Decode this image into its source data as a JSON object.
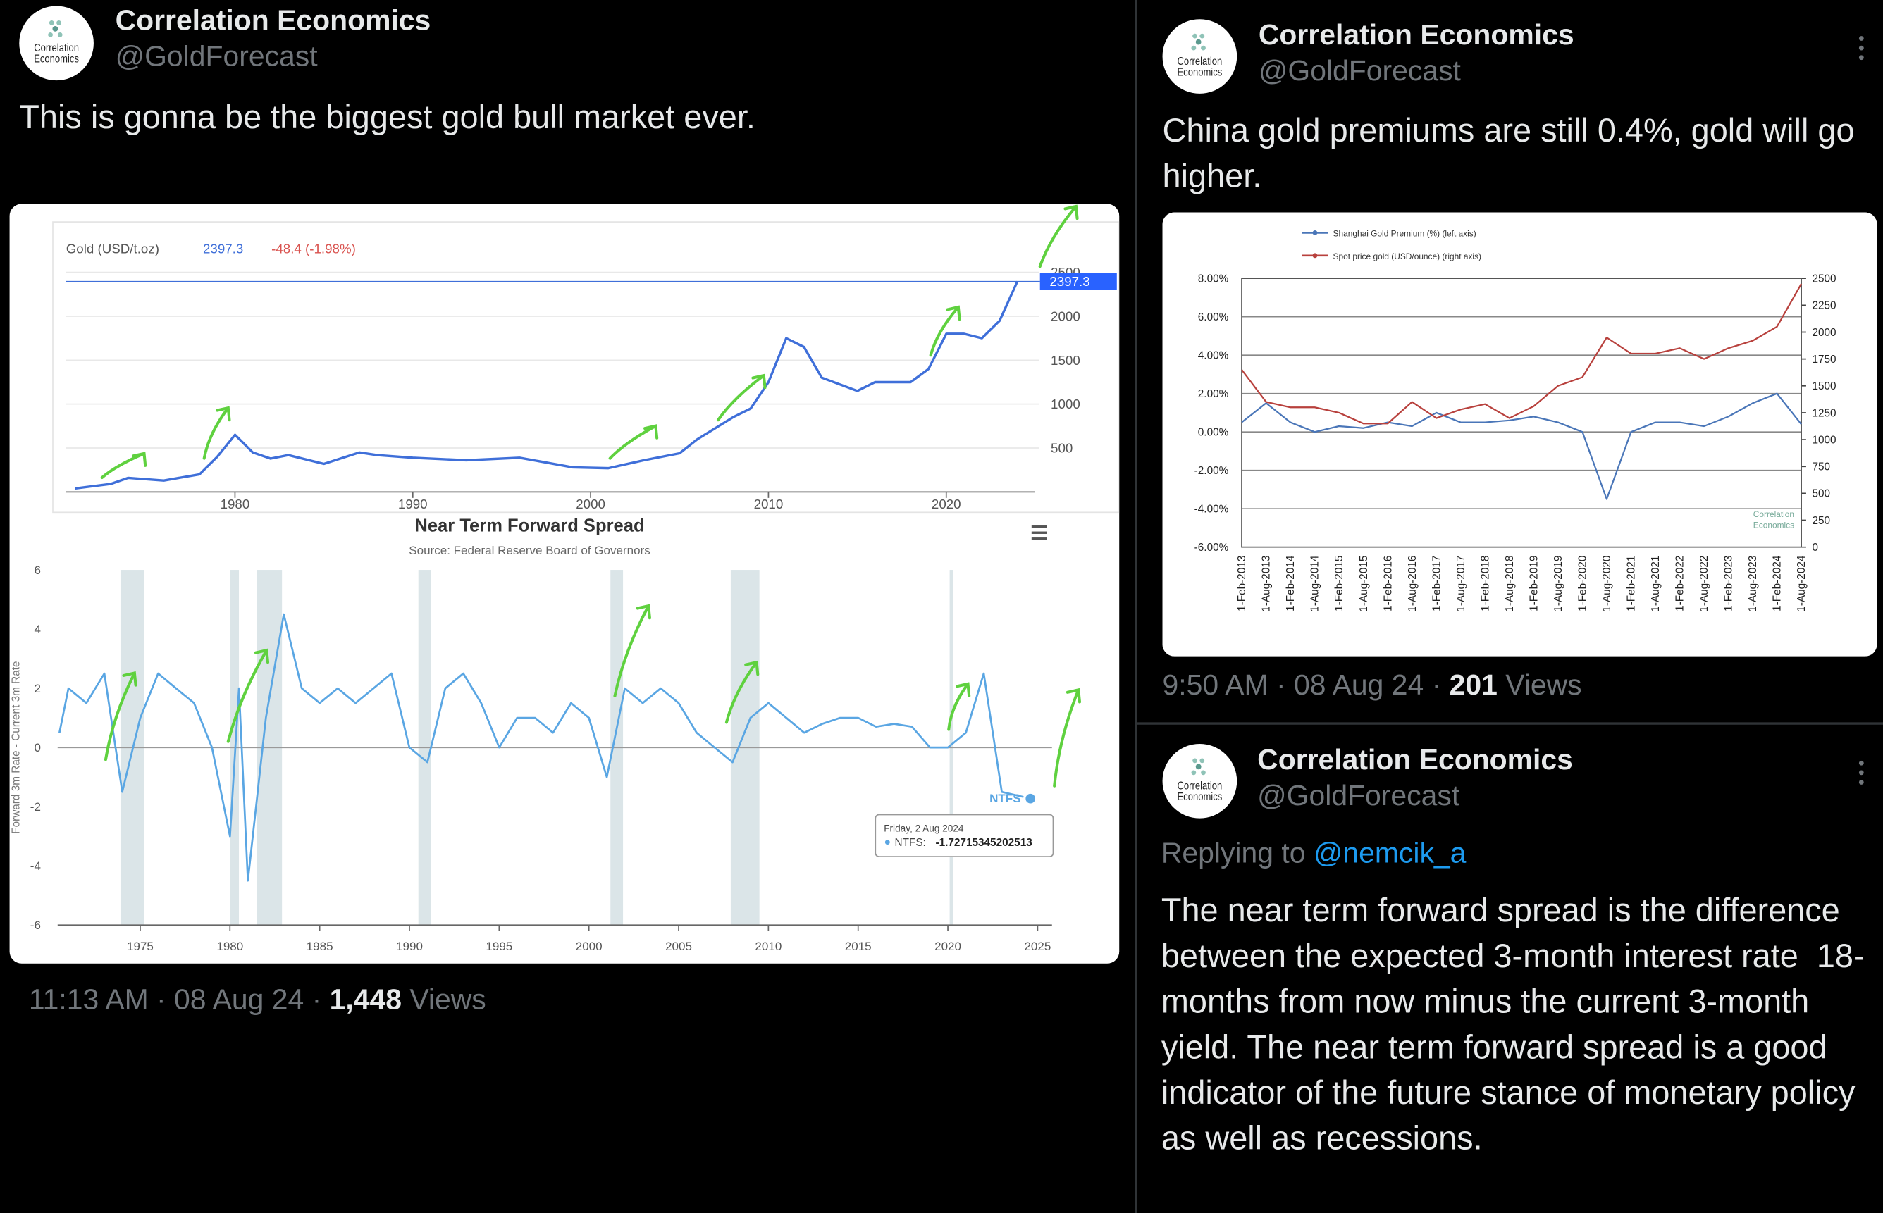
{
  "logo": {
    "lines": [
      "Correlation",
      "Economics"
    ]
  },
  "separator": "·",
  "tweets": [
    {
      "author": "Correlation Economics",
      "handle": "@GoldForecast",
      "text": "This is gonna be the biggest gold bull market ever.",
      "time": "11:13 AM",
      "date": "08 Aug 24",
      "views": "1,448",
      "views_label": "Views",
      "media": [
        {
          "type": "line",
          "title": "Gold (USD/t.oz)",
          "last_price": 2397.3,
          "change": "-48.4 (-1.98%)",
          "series": [
            {
              "name": "Gold",
              "color": "#3f6fd9",
              "x": [
                1971,
                1973,
                1974,
                1976,
                1978,
                1979,
                1980,
                1981,
                1982,
                1983,
                1985,
                1987,
                1988,
                1990,
                1993,
                1996,
                1999,
                2001,
                2003,
                2005,
                2006,
                2008,
                2009,
                2010,
                2011,
                2012,
                2013,
                2015,
                2016,
                2018,
                2019,
                2020,
                2021,
                2022,
                2023,
                2024
              ],
              "values": [
                40,
                90,
                160,
                130,
                200,
                400,
                650,
                450,
                380,
                420,
                320,
                450,
                420,
                390,
                360,
                390,
                280,
                270,
                360,
                440,
                600,
                850,
                950,
                1250,
                1750,
                1650,
                1300,
                1150,
                1250,
                1250,
                1400,
                1800,
                1800,
                1750,
                1950,
                2397.3
              ]
            }
          ],
          "xlim": [
            1970.5,
            2025
          ],
          "ylim": [
            0,
            2500
          ],
          "xticks": [
            1980,
            1990,
            2000,
            2010,
            2020
          ],
          "yticks": [
            500,
            1000,
            1500,
            2000,
            2500
          ],
          "grid": true
        },
        {
          "type": "line",
          "title": "Near Term Forward Spread",
          "subtitle": "Source: Federal Reserve Board of Governors",
          "y_label": "Forward 3m Rate - Current 3m Rate",
          "series": [
            {
              "name": "NTFS",
              "color": "#5aa6e3",
              "x": [
                1970.5,
                1971,
                1972,
                1973,
                1974,
                1975,
                1976,
                1977,
                1978,
                1979,
                1980,
                1980.5,
                1981,
                1982,
                1983,
                1984,
                1985,
                1986,
                1987,
                1988,
                1989,
                1990,
                1991,
                1992,
                1993,
                1994,
                1995,
                1996,
                1997,
                1998,
                1999,
                2000,
                2001,
                2002,
                2003,
                2004,
                2005,
                2006,
                2007,
                2008,
                2009,
                2010,
                2011,
                2012,
                2013,
                2014,
                2015,
                2016,
                2017,
                2018,
                2019,
                2020,
                2021,
                2022,
                2023,
                2024.6
              ],
              "values": [
                0.5,
                2,
                1.5,
                2.5,
                -1.5,
                1,
                2.5,
                2,
                1.5,
                0,
                -3,
                2,
                -4.5,
                1,
                4.5,
                2,
                1.5,
                2,
                1.5,
                2,
                2.5,
                0,
                -0.5,
                2,
                2.5,
                1.5,
                0,
                1,
                1,
                0.5,
                1.5,
                1,
                -1,
                2,
                1.5,
                2,
                1.5,
                0.5,
                0,
                -0.5,
                1,
                1.5,
                1,
                0.5,
                0.8,
                1,
                1,
                0.7,
                0.8,
                0.7,
                0,
                0,
                0.5,
                2.5,
                -1.5,
                -1.72715345202513
              ]
            }
          ],
          "recessions": [
            [
              1973.9,
              1975.2
            ],
            [
              1980,
              1980.5
            ],
            [
              1981.5,
              1982.9
            ],
            [
              1990.5,
              1991.2
            ],
            [
              2001.2,
              2001.9
            ],
            [
              2007.9,
              2009.5
            ],
            [
              2020.1,
              2020.3
            ]
          ],
          "tooltip": {
            "date": "Friday, 2 Aug 2024",
            "label": "NTFS:",
            "value": -1.72715345202513
          },
          "xlim": [
            1970.4,
            2025.8
          ],
          "ylim": [
            -6,
            6
          ],
          "xticks": [
            1975,
            1980,
            1985,
            1990,
            1995,
            2000,
            2005,
            2010,
            2015,
            2020,
            2025
          ],
          "yticks": [
            -6,
            -4,
            -2,
            0,
            2,
            4,
            6
          ],
          "grid": false
        }
      ]
    },
    {
      "author": "Correlation Economics",
      "handle": "@GoldForecast",
      "text": "China gold premiums are still 0.4%, gold will go higher.",
      "time": "9:50 AM",
      "date": "08 Aug 24",
      "views": "201",
      "views_label": "Views",
      "media": [
        {
          "type": "line",
          "categories": [
            "1-Feb-2013",
            "1-Aug-2013",
            "1-Feb-2014",
            "1-Aug-2014",
            "1-Feb-2015",
            "1-Aug-2015",
            "1-Feb-2016",
            "1-Aug-2016",
            "1-Feb-2017",
            "1-Aug-2017",
            "1-Feb-2018",
            "1-Aug-2018",
            "1-Feb-2019",
            "1-Aug-2019",
            "1-Feb-2020",
            "1-Aug-2020",
            "1-Feb-2021",
            "1-Aug-2021",
            "1-Feb-2022",
            "1-Aug-2022",
            "1-Feb-2023",
            "1-Aug-2023",
            "1-Feb-2024",
            "1-Aug-2024"
          ],
          "series": [
            {
              "name": "Shanghai Gold Premium (%) (left axis)",
              "color": "#4a76b8",
              "values": [
                0.5,
                1.5,
                0.5,
                0,
                0.3,
                0.2,
                0.5,
                0.3,
                1,
                0.5,
                0.5,
                0.6,
                0.8,
                0.5,
                0,
                -3.5,
                0,
                0.5,
                0.5,
                0.3,
                0.8,
                1.5,
                2,
                0.4
              ]
            },
            {
              "name": "Spot price gold (USD/ounce) (right axis)",
              "color": "#b8413d",
              "axis": "y2",
              "values": [
                1650,
                1350,
                1300,
                1300,
                1250,
                1150,
                1150,
                1350,
                1200,
                1280,
                1330,
                1200,
                1310,
                1500,
                1580,
                1950,
                1800,
                1800,
                1850,
                1750,
                1850,
                1920,
                2050,
                2450
              ]
            }
          ],
          "ylim": [
            -6,
            8
          ],
          "yticks": [
            {
              "value": -6,
              "label": "-6.00%"
            },
            {
              "value": -4,
              "label": "-4.00%"
            },
            {
              "value": -2,
              "label": "-2.00%"
            },
            {
              "value": 0,
              "label": "0.00%"
            },
            {
              "value": 2,
              "label": "2.00%"
            },
            {
              "value": 4,
              "label": "4.00%"
            },
            {
              "value": 6,
              "label": "6.00%"
            },
            {
              "value": 8,
              "label": "8.00%"
            }
          ],
          "y2lim": [
            0,
            2500
          ],
          "y2ticks": [
            0,
            250,
            500,
            750,
            1000,
            1250,
            1500,
            1750,
            2000,
            2250,
            2500
          ],
          "grid": true
        }
      ]
    },
    {
      "author": "Correlation Economics",
      "handle": "@GoldForecast",
      "reply_label": "Replying to",
      "reply_to": "@nemcik_a",
      "text": "The near term forward spread is the difference between the expected 3-month interest rate  18-months from now minus the current 3-month yield. The near term forward spread is a good indicator of the future stance of monetary policy as well as recessions."
    }
  ]
}
